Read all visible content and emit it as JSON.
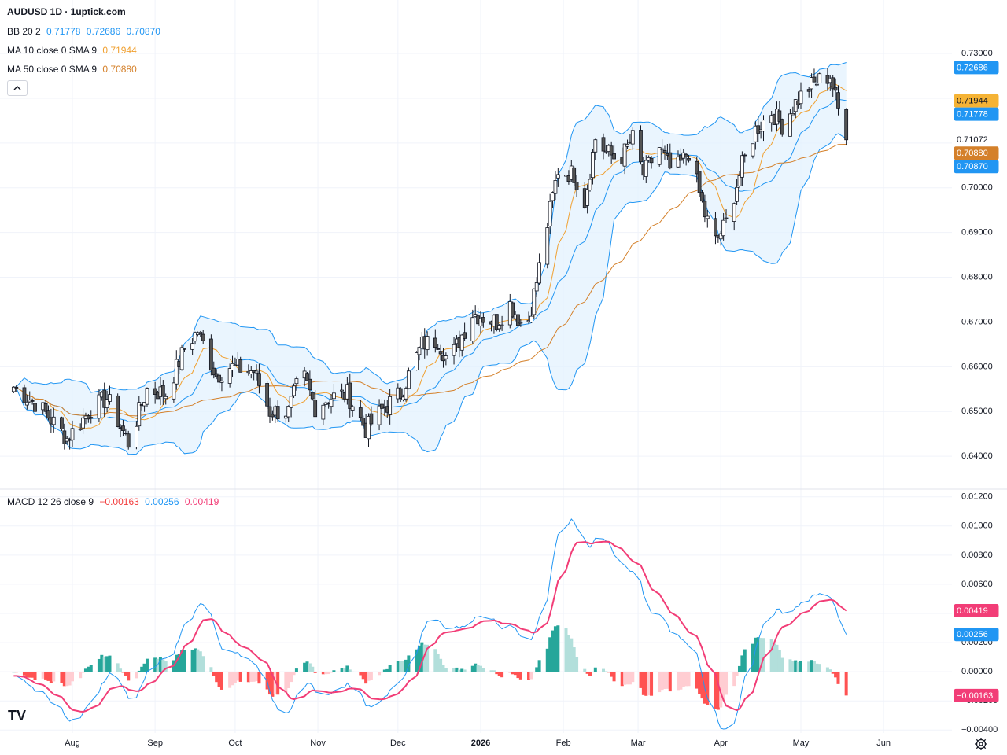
{
  "header": {
    "title": "AUDUSD 1D · 1uptick.com",
    "bb": {
      "label": "BB 20 2",
      "middle": "0.71778",
      "upper": "0.72686",
      "lower": "0.70870",
      "color": "#2196f3"
    },
    "ma10": {
      "label": "MA 10 close 0 SMA 9",
      "value": "0.71944",
      "color": "#f0a030"
    },
    "ma50": {
      "label": "MA 50 close 0 SMA 9",
      "value": "0.70880",
      "color": "#d4802a"
    }
  },
  "macd_legend": {
    "label": "MACD 12 26 close 9",
    "hist": "−0.00163",
    "macd": "0.00256",
    "signal": "0.00419"
  },
  "branding": {
    "logo": "TV"
  },
  "colors": {
    "candle_up_fill": "#ffffff",
    "candle_down_fill": "#545454",
    "candle_border": "#131722",
    "bb_line": "#2196f3",
    "bb_fill": "#e3f2fd",
    "ma10": "#f0a030",
    "ma50": "#d4802a",
    "macd_line": "#2196f3",
    "signal_line": "#f23d77",
    "hist_up_strong": "#26a69a",
    "hist_up_weak": "#b2dfdb",
    "hist_down_strong": "#ff5252",
    "hist_down_weak": "#ffcdd2"
  },
  "chart_data": [
    {
      "type": "candlestick",
      "title": "AUDUSD 1D",
      "x_ticks": [
        "Aug",
        "Sep",
        "Oct",
        "Nov",
        "Dec",
        "2026",
        "Feb",
        "Mar",
        "Apr",
        "May",
        "Jun"
      ],
      "y_ticks": [
        "0.73000",
        "0.72000",
        "0.71000",
        "0.70000",
        "0.69000",
        "0.68000",
        "0.67000",
        "0.66000",
        "0.65000",
        "0.64000"
      ],
      "ylim": [
        0.633,
        0.7402
      ],
      "grid": true,
      "price_tags": [
        {
          "text": "0.72686",
          "value": 0.72686,
          "color": "#2196f3",
          "text_color": "#ffffff"
        },
        {
          "text": "0.71944",
          "value": 0.71944,
          "color": "#f5b335",
          "text_color": "#131722"
        },
        {
          "text": "0.71778",
          "value": 0.71778,
          "color": "#2196f3",
          "text_color": "#ffffff"
        },
        {
          "text": "0.71072",
          "value": 0.71072,
          "color": "#ffffff",
          "text_color": "#131722"
        },
        {
          "text": "0.70880",
          "value": 0.7088,
          "color": "#d4802a",
          "text_color": "#ffffff"
        },
        {
          "text": "0.70870",
          "value": 0.7087,
          "color": "#2196f3",
          "text_color": "#ffffff"
        }
      ],
      "anchors": [
        [
          "2025-07-10",
          0.6555
        ],
        [
          "2025-07-20",
          0.651
        ],
        [
          "2025-07-30",
          0.644
        ],
        [
          "2025-08-08",
          0.6505
        ],
        [
          "2025-08-14",
          0.653
        ],
        [
          "2025-08-22",
          0.643
        ],
        [
          "2025-08-29",
          0.655
        ],
        [
          "2025-09-05",
          0.654
        ],
        [
          "2025-09-12",
          0.664
        ],
        [
          "2025-09-17",
          0.668
        ],
        [
          "2025-09-24",
          0.658
        ],
        [
          "2025-09-29",
          0.66
        ],
        [
          "2025-10-08",
          0.659
        ],
        [
          "2025-10-14",
          0.65
        ],
        [
          "2025-10-21",
          0.65
        ],
        [
          "2025-10-26",
          0.659
        ],
        [
          "2025-10-31",
          0.651
        ],
        [
          "2025-11-05",
          0.653
        ],
        [
          "2025-11-12",
          0.654
        ],
        [
          "2025-11-19",
          0.646
        ],
        [
          "2025-11-26",
          0.651
        ],
        [
          "2025-12-02",
          0.654
        ],
        [
          "2025-12-10",
          0.665
        ],
        [
          "2025-12-16",
          0.666
        ],
        [
          "2025-12-20",
          0.661
        ],
        [
          "2025-12-29",
          0.672
        ],
        [
          "2026-01-07",
          0.67
        ],
        [
          "2026-01-12",
          0.674
        ],
        [
          "2026-01-18",
          0.668
        ],
        [
          "2026-01-22",
          0.679
        ],
        [
          "2026-01-27",
          0.695
        ],
        [
          "2026-01-30",
          0.704
        ],
        [
          "2026-02-05",
          0.703
        ],
        [
          "2026-02-09",
          0.697
        ],
        [
          "2026-02-13",
          0.711
        ],
        [
          "2026-02-17",
          0.708
        ],
        [
          "2026-02-22",
          0.706
        ],
        [
          "2026-02-27",
          0.711
        ],
        [
          "2026-03-03",
          0.703
        ],
        [
          "2026-03-09",
          0.709
        ],
        [
          "2026-03-14",
          0.703
        ],
        [
          "2026-03-20",
          0.708
        ],
        [
          "2026-03-26",
          0.694
        ],
        [
          "2026-03-30",
          0.688
        ],
        [
          "2026-04-03",
          0.692
        ],
        [
          "2026-04-09",
          0.705
        ],
        [
          "2026-04-14",
          0.713
        ],
        [
          "2026-04-20",
          0.717
        ],
        [
          "2026-04-24",
          0.714
        ],
        [
          "2026-04-29",
          0.719
        ],
        [
          "2026-05-03",
          0.722
        ],
        [
          "2026-05-08",
          0.724
        ],
        [
          "2026-05-12",
          0.725
        ],
        [
          "2026-05-15",
          0.7175
        ],
        [
          "2026-05-18",
          0.7107
        ]
      ],
      "last_close": 0.71072
    },
    {
      "type": "line",
      "title": "MACD 12 26 close 9",
      "y_ticks": [
        "0.01200",
        "0.01000",
        "0.00800",
        "0.00600",
        "0.00400",
        "0.00200",
        "0.00000",
        "−0.00200",
        "−0.00400"
      ],
      "ylim": [
        -0.0042,
        0.0122
      ],
      "series": [
        {
          "name": "MACD",
          "value": 0.00256
        },
        {
          "name": "Signal",
          "value": 0.00419
        },
        {
          "name": "Histogram",
          "value": -0.00163
        }
      ],
      "price_tags": [
        {
          "text": "0.00419",
          "value": 0.00419,
          "color": "#f23d77",
          "text_color": "#ffffff"
        },
        {
          "text": "0.00256",
          "value": 0.00256,
          "color": "#2196f3",
          "text_color": "#ffffff"
        },
        {
          "text": "−0.00163",
          "value": -0.00163,
          "color": "#f23d77",
          "text_color": "#ffffff"
        }
      ]
    }
  ]
}
